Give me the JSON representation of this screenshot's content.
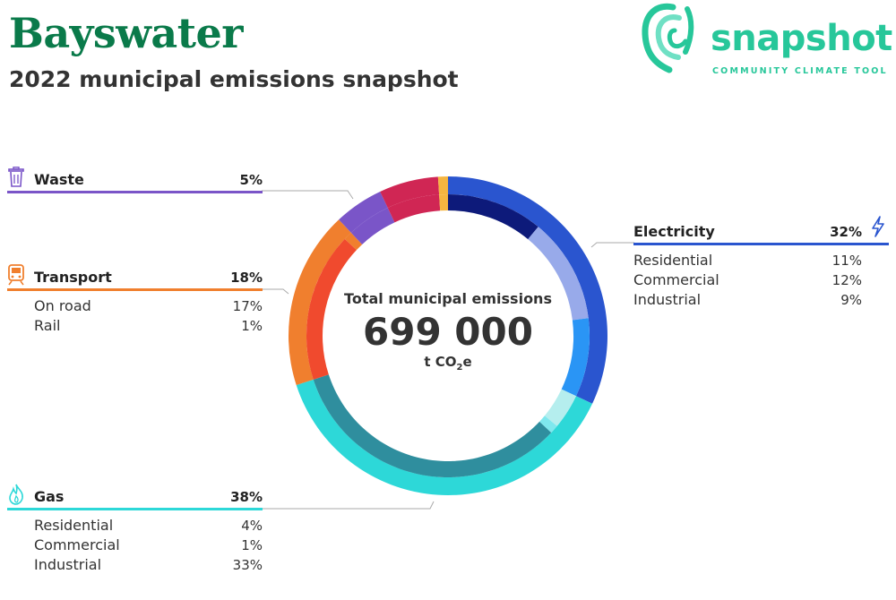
{
  "header": {
    "title": "Bayswater",
    "subtitle": "2022 municipal emissions snapshot"
  },
  "logo": {
    "name": "snapshot",
    "tagline": "COMMUNITY CLIMATE TOOL"
  },
  "colors": {
    "brand_title": "#0a7a4a",
    "brand_logo": "#27c79a",
    "electricity": "#2a55cf",
    "gas": "#2dd8d8",
    "transport": "#f07f2e",
    "waste": "#7a55c8",
    "other_red": "#d02654",
    "other_yellow": "#f5b540"
  },
  "center": {
    "label": "Total municipal emissions",
    "value": "699 000",
    "unit_prefix": "t CO",
    "unit_sub": "2",
    "unit_suffix": "e"
  },
  "sectors": {
    "waste": {
      "name": "Waste",
      "pct": "5%",
      "icon": "trash-bin-icon"
    },
    "transport": {
      "name": "Transport",
      "pct": "18%",
      "icon": "train-icon",
      "subs": [
        {
          "label": "On road",
          "value": "17%"
        },
        {
          "label": "Rail",
          "value": "1%"
        }
      ]
    },
    "gas": {
      "name": "Gas",
      "pct": "38%",
      "icon": "flame-icon",
      "subs": [
        {
          "label": "Residential",
          "value": "4%"
        },
        {
          "label": "Commercial",
          "value": "1%"
        },
        {
          "label": "Industrial",
          "value": "33%"
        }
      ]
    },
    "electricity": {
      "name": "Electricity",
      "pct": "32%",
      "icon": "lightning-bolt-icon",
      "subs": [
        {
          "label": "Residential",
          "value": "11%"
        },
        {
          "label": "Commercial",
          "value": "12%"
        },
        {
          "label": "Industrial",
          "value": "9%"
        }
      ]
    }
  },
  "chart_data": {
    "type": "pie",
    "title": "Total municipal emissions",
    "total": 699000,
    "unit": "t CO2e",
    "outer_ring": [
      {
        "name": "Electricity",
        "value": 32,
        "color": "#2a55cf"
      },
      {
        "name": "Gas",
        "value": 38,
        "color": "#2dd8d8"
      },
      {
        "name": "Transport",
        "value": 18,
        "color": "#f07f2e"
      },
      {
        "name": "Waste",
        "value": 5,
        "color": "#7a55c8"
      },
      {
        "value": 6,
        "color": "#d02654"
      },
      {
        "value": 1,
        "color": "#f5b540"
      }
    ],
    "inner_ring": [
      {
        "name": "Electricity Residential",
        "value": 11,
        "color": "#0d1a7a"
      },
      {
        "name": "Electricity Commercial",
        "value": 12,
        "color": "#98aaea"
      },
      {
        "name": "Electricity Industrial",
        "value": 9,
        "color": "#2a95f5"
      },
      {
        "name": "Gas Residential",
        "value": 4,
        "color": "#b5eeee"
      },
      {
        "name": "Gas Commercial",
        "value": 1,
        "color": "#7ee8ee"
      },
      {
        "name": "Gas Industrial",
        "value": 33,
        "color": "#2f8e9e"
      },
      {
        "name": "Transport On road",
        "value": 17,
        "color": "#f04a2e"
      },
      {
        "name": "Transport Rail",
        "value": 1,
        "color": "#f07f2e"
      },
      {
        "value": 5,
        "color": "#7a55c8"
      },
      {
        "value": 6,
        "color": "#d02654"
      },
      {
        "value": 1,
        "color": "#f5b540"
      }
    ]
  }
}
